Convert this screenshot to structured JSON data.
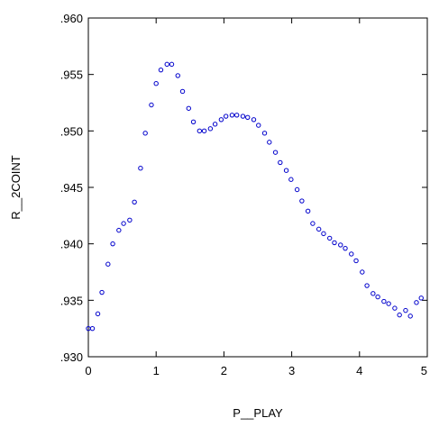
{
  "chart_data": {
    "type": "scatter",
    "title": "",
    "xlabel": "P__PLAY",
    "ylabel": "R__2COINT",
    "xlim": [
      0,
      5
    ],
    "ylim": [
      0.93,
      0.96
    ],
    "x_ticks": [
      0,
      1,
      2,
      3,
      4,
      5
    ],
    "x_tick_labels": [
      "0",
      "1",
      "2",
      "3",
      "4",
      "5"
    ],
    "y_ticks": [
      0.93,
      0.935,
      0.94,
      0.945,
      0.95,
      0.955,
      0.96
    ],
    "y_tick_labels": [
      ".930",
      ".935",
      ".940",
      ".945",
      ".950",
      ".955",
      ".960"
    ],
    "grid": false,
    "marker": "hollow-circle",
    "marker_color": "#0000cc",
    "series": [
      {
        "x": [
          0.0,
          0.06,
          0.14,
          0.2,
          0.29,
          0.36,
          0.45,
          0.52,
          0.61,
          0.68,
          0.77,
          0.84,
          0.93,
          1.0,
          1.07,
          1.16,
          1.23,
          1.32,
          1.39,
          1.48,
          1.55,
          1.64,
          1.71,
          1.8,
          1.87,
          1.96,
          2.03,
          2.12,
          2.19,
          2.28,
          2.35,
          2.44,
          2.51,
          2.6,
          2.67,
          2.76,
          2.83,
          2.92,
          2.99,
          3.08,
          3.15,
          3.24,
          3.31,
          3.4,
          3.47,
          3.56,
          3.63,
          3.72,
          3.79,
          3.88,
          3.95,
          4.04,
          4.11,
          4.2,
          4.27,
          4.36,
          4.43,
          4.52,
          4.59,
          4.68,
          4.75,
          4.84,
          4.91
        ],
        "y": [
          0.9325,
          0.9325,
          0.9338,
          0.9357,
          0.9382,
          0.94,
          0.9412,
          0.9418,
          0.9421,
          0.9437,
          0.9467,
          0.9498,
          0.9523,
          0.9542,
          0.9554,
          0.9559,
          0.9559,
          0.9549,
          0.9535,
          0.952,
          0.9508,
          0.95,
          0.95,
          0.9502,
          0.9506,
          0.951,
          0.9513,
          0.9514,
          0.9514,
          0.9513,
          0.9512,
          0.951,
          0.9505,
          0.9498,
          0.949,
          0.9481,
          0.9472,
          0.9465,
          0.9457,
          0.9448,
          0.9438,
          0.9429,
          0.9418,
          0.9413,
          0.9409,
          0.9405,
          0.9401,
          0.9399,
          0.9396,
          0.9391,
          0.9385,
          0.9375,
          0.9363,
          0.9356,
          0.9353,
          0.9349,
          0.9347,
          0.9343,
          0.9337,
          0.9341,
          0.9336,
          0.9348,
          0.9352
        ]
      }
    ]
  }
}
